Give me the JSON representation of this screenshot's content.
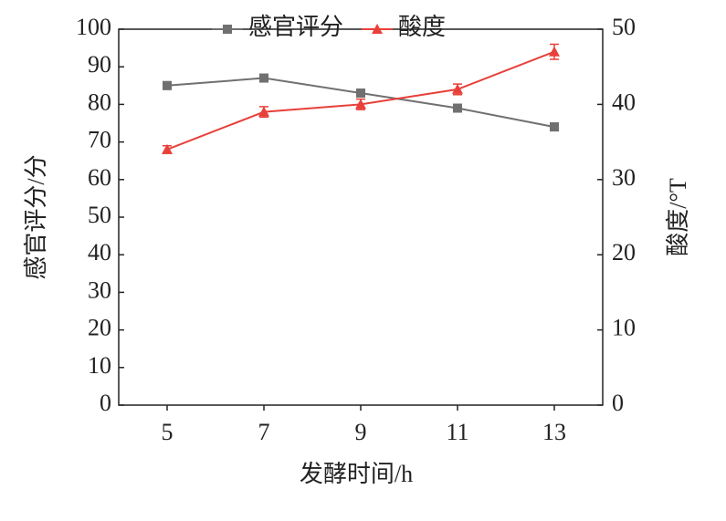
{
  "chart_data": {
    "type": "line",
    "x": [
      5,
      7,
      9,
      11,
      13
    ],
    "xlim": [
      4,
      14
    ],
    "xticks": [
      5,
      7,
      9,
      11,
      13
    ],
    "ylim": [
      0,
      100
    ],
    "yticks": [
      0,
      10,
      20,
      30,
      40,
      50,
      60,
      70,
      80,
      90,
      100
    ],
    "y2lim": [
      0,
      50
    ],
    "y2ticks": [
      0,
      10,
      20,
      30,
      40,
      50
    ],
    "xlabel": "发酵时间/h",
    "ylabel": "感官评分/分",
    "y2label": "酸度/°T",
    "legend": "top",
    "series": [
      {
        "name": "感官评分",
        "color": "#707070",
        "marker": "square",
        "values": [
          85,
          87,
          83,
          79,
          74
        ],
        "errors": [
          1,
          1,
          1,
          0.5,
          1
        ]
      },
      {
        "name": "酸度",
        "color": "#e8403a",
        "marker": "triangle",
        "axis": "y2",
        "values": [
          34,
          39,
          40,
          42,
          47
        ],
        "errors": [
          0.5,
          0.7,
          0.7,
          0.7,
          1
        ]
      }
    ]
  }
}
